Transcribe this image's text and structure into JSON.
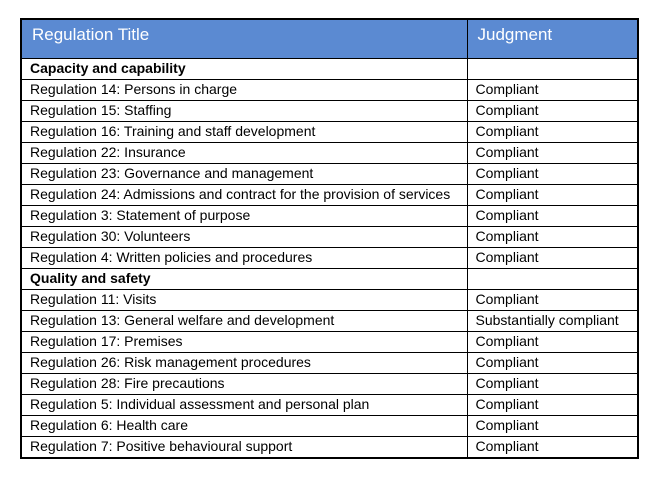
{
  "colors": {
    "header_bg": "#5B8AD2",
    "header_text": "#FFFFFF",
    "border": "#000000",
    "body_text": "#000000",
    "page_bg": "#FFFFFF"
  },
  "table": {
    "columns": [
      {
        "label": "Regulation Title"
      },
      {
        "label": "Judgment"
      }
    ],
    "rows": [
      {
        "type": "section",
        "title": "Capacity and capability",
        "judgment": ""
      },
      {
        "type": "regulation",
        "title": "Regulation 14: Persons in charge",
        "judgment": "Compliant"
      },
      {
        "type": "regulation",
        "title": "Regulation 15: Staffing",
        "judgment": "Compliant"
      },
      {
        "type": "regulation",
        "title": "Regulation 16: Training and staff development",
        "judgment": "Compliant"
      },
      {
        "type": "regulation",
        "title": "Regulation 22: Insurance",
        "judgment": "Compliant"
      },
      {
        "type": "regulation",
        "title": "Regulation 23: Governance and management",
        "judgment": "Compliant"
      },
      {
        "type": "regulation",
        "title": "Regulation 24: Admissions and contract for the provision of services",
        "judgment": "Compliant"
      },
      {
        "type": "regulation",
        "title": "Regulation 3: Statement of purpose",
        "judgment": "Compliant"
      },
      {
        "type": "regulation",
        "title": "Regulation 30: Volunteers",
        "judgment": "Compliant"
      },
      {
        "type": "regulation",
        "title": "Regulation 4: Written policies and procedures",
        "judgment": "Compliant"
      },
      {
        "type": "section",
        "title": "Quality and safety",
        "judgment": ""
      },
      {
        "type": "regulation",
        "title": "Regulation 11: Visits",
        "judgment": "Compliant"
      },
      {
        "type": "regulation",
        "title": "Regulation 13: General welfare and development",
        "judgment": "Substantially compliant"
      },
      {
        "type": "regulation",
        "title": "Regulation 17: Premises",
        "judgment": "Compliant"
      },
      {
        "type": "regulation",
        "title": "Regulation 26: Risk management procedures",
        "judgment": "Compliant"
      },
      {
        "type": "regulation",
        "title": "Regulation 28: Fire precautions",
        "judgment": "Compliant"
      },
      {
        "type": "regulation",
        "title": "Regulation 5: Individual assessment and personal plan",
        "judgment": "Compliant"
      },
      {
        "type": "regulation",
        "title": "Regulation 6: Health care",
        "judgment": "Compliant"
      },
      {
        "type": "regulation",
        "title": "Regulation 7: Positive behavioural support",
        "judgment": "Compliant"
      }
    ]
  }
}
